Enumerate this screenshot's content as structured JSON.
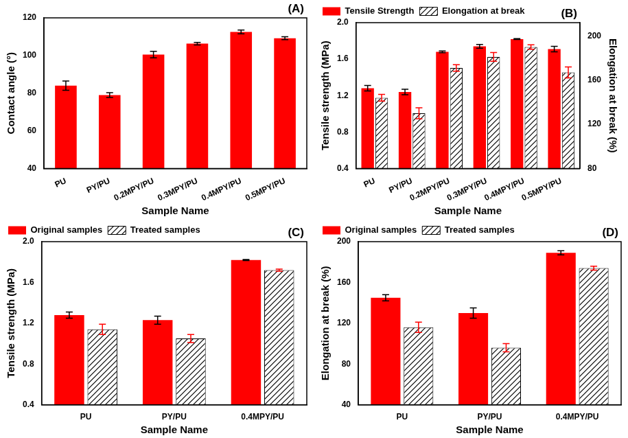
{
  "chart_data": [
    {
      "type": "bar",
      "annotation": "(A)",
      "xlabel": "Sample Name",
      "ylabel": "Contact angle (°)",
      "categories": [
        "PU",
        "PY/PU",
        "0.2MPY/PU",
        "0.3MPY/PU",
        "0.4MPY/PU",
        "0.5MPY/PU"
      ],
      "values": [
        84,
        79,
        100.5,
        106.3,
        112.5,
        109.2
      ],
      "errors": [
        2.5,
        1.3,
        1.7,
        0.7,
        1.0,
        0.8
      ],
      "color": "#ff0000",
      "ylim": [
        40,
        120
      ],
      "yticks": [
        40,
        60,
        80,
        100,
        120
      ],
      "grid": false
    },
    {
      "type": "bar",
      "annotation": "(B)",
      "xlabel": "Sample Name",
      "ylabel": "Tensile strength (MPa)",
      "y2label": "Elongation at break (%)",
      "categories": [
        "PU",
        "PY/PU",
        "0.2MPY/PU",
        "0.3MPY/PU",
        "0.4MPY/PU",
        "0.5MPY/PU"
      ],
      "series": [
        {
          "name": "Tensile Strength",
          "color": "#ff0000",
          "values": [
            1.28,
            1.24,
            1.68,
            1.74,
            1.82,
            1.71
          ],
          "errors": [
            0.03,
            0.03,
            0.01,
            0.02,
            0.005,
            0.03
          ]
        },
        {
          "name": "Elongation at break",
          "color": "#000000",
          "marker": "hatch",
          "axis": "y2",
          "values": [
            144,
            130,
            171,
            181,
            190,
            167
          ],
          "errors": [
            3,
            5,
            3,
            4,
            2,
            5
          ]
        }
      ],
      "ylim": [
        0.4,
        2.0
      ],
      "yticks": [
        0.4,
        0.8,
        1.2,
        1.6,
        {
          "value": 2,
          "label": "2.0"
        }
      ],
      "y2lim": [
        80,
        212
      ],
      "y2ticks": [
        80,
        120,
        160,
        200
      ],
      "legend": "upper left",
      "grid": false
    },
    {
      "type": "bar",
      "annotation": "(C)",
      "xlabel": "Sample Name",
      "ylabel": "Tensile strength (MPa)",
      "categories": [
        "PU",
        "PY/PU",
        "0.4MPY/PU"
      ],
      "series": [
        {
          "name": "Original samples",
          "color": "#ff0000",
          "values": [
            1.28,
            1.23,
            1.82
          ],
          "errors": [
            0.03,
            0.04,
            0.005
          ]
        },
        {
          "name": "Treated samples",
          "color": "#000000",
          "marker": "hatch",
          "values": [
            1.14,
            1.05,
            1.72
          ],
          "errors": [
            0.05,
            0.04,
            0.01
          ]
        }
      ],
      "ylim": [
        0.4,
        2.0
      ],
      "yticks": [
        0.4,
        0.8,
        1.2,
        1.6,
        {
          "value": 2,
          "label": "2.0"
        }
      ],
      "legend": "upper left",
      "grid": false
    },
    {
      "type": "bar",
      "annotation": "(D)",
      "xlabel": "Sample Name",
      "ylabel": "Elongation at break (%)",
      "categories": [
        "PU",
        "PY/PU",
        "0.4MPY/PU"
      ],
      "series": [
        {
          "name": "Original samples",
          "color": "#ff0000",
          "values": [
            145,
            130,
            189
          ],
          "errors": [
            3,
            5,
            2
          ]
        },
        {
          "name": "Treated samples",
          "color": "#000000",
          "marker": "hatch",
          "values": [
            116,
            96,
            174
          ],
          "errors": [
            5,
            4,
            2
          ]
        }
      ],
      "ylim": [
        40,
        200
      ],
      "yticks": [
        40,
        80,
        120,
        160,
        200
      ],
      "legend": "upper left",
      "grid": false
    }
  ]
}
